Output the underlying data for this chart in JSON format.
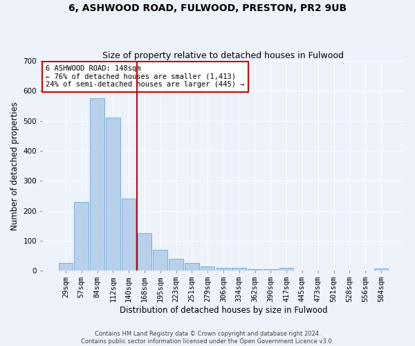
{
  "title1": "6, ASHWOOD ROAD, FULWOOD, PRESTON, PR2 9UB",
  "title2": "Size of property relative to detached houses in Fulwood",
  "xlabel": "Distribution of detached houses by size in Fulwood",
  "ylabel": "Number of detached properties",
  "footer1": "Contains HM Land Registry data © Crown copyright and database right 2024.",
  "footer2": "Contains public sector information licensed under the Open Government Licence v3.0.",
  "bar_labels": [
    "29sqm",
    "57sqm",
    "84sqm",
    "112sqm",
    "140sqm",
    "168sqm",
    "195sqm",
    "223sqm",
    "251sqm",
    "279sqm",
    "306sqm",
    "334sqm",
    "362sqm",
    "390sqm",
    "417sqm",
    "445sqm",
    "473sqm",
    "501sqm",
    "528sqm",
    "556sqm",
    "584sqm"
  ],
  "bar_values": [
    25,
    230,
    575,
    510,
    240,
    125,
    70,
    40,
    25,
    15,
    10,
    10,
    5,
    5,
    10,
    0,
    0,
    0,
    0,
    0,
    7
  ],
  "bar_color": "#b8d0ea",
  "bar_edge_color": "#6aaad4",
  "vline_x_idx": 4.5,
  "vline_color": "#cc0000",
  "annotation_text": "6 ASHWOOD ROAD: 148sqm\n← 76% of detached houses are smaller (1,413)\n24% of semi-detached houses are larger (445) →",
  "annotation_box_color": "#ffffff",
  "annotation_box_edge": "#cc0000",
  "ylim": [
    0,
    700
  ],
  "yticks": [
    0,
    100,
    200,
    300,
    400,
    500,
    600,
    700
  ],
  "bg_color": "#edf2fb",
  "grid_color": "#ffffff",
  "title1_fontsize": 10,
  "title2_fontsize": 9,
  "xlabel_fontsize": 8.5,
  "ylabel_fontsize": 8.5,
  "tick_fontsize": 7.5,
  "annotation_fontsize": 7.5
}
